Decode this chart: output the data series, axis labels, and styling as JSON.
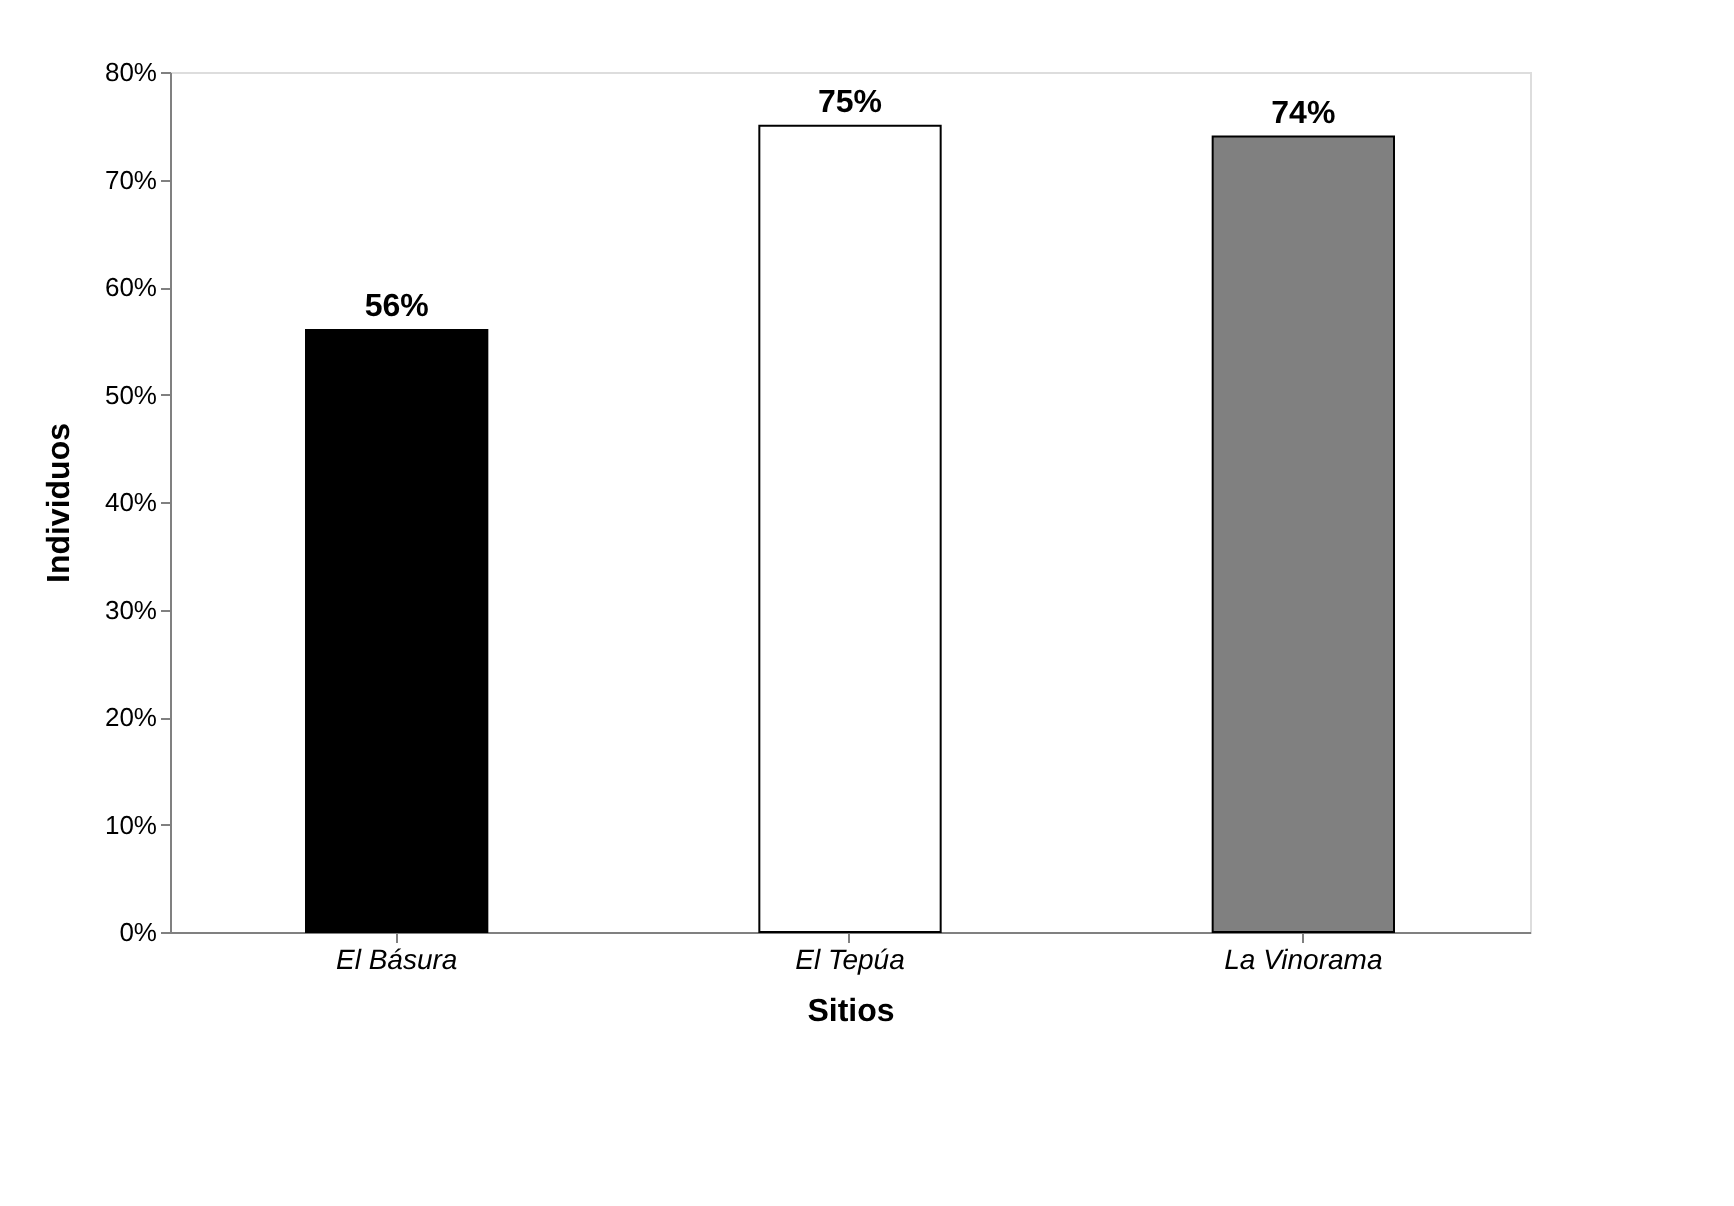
{
  "chart_data": {
    "type": "bar",
    "xlabel": "Sitios",
    "ylabel": "Individuos",
    "categories": [
      "El Básura",
      "El Tepúa",
      "La Vinorama"
    ],
    "values": [
      56,
      75,
      74
    ],
    "colors": [
      "#000000",
      "#ffffff",
      "#808080"
    ],
    "value_labels": [
      "56%",
      "75%",
      "74%"
    ],
    "ylim": [
      0,
      80
    ],
    "yticks": [
      {
        "value": 0,
        "label": "0%"
      },
      {
        "value": 10,
        "label": "10%"
      },
      {
        "value": 20,
        "label": "20%"
      },
      {
        "value": 30,
        "label": "30%"
      },
      {
        "value": 40,
        "label": "40%"
      },
      {
        "value": 50,
        "label": "50%"
      },
      {
        "value": 60,
        "label": "60%"
      },
      {
        "value": 70,
        "label": "70%"
      },
      {
        "value": 80,
        "label": "80%"
      }
    ],
    "grid": false,
    "legend": false
  }
}
